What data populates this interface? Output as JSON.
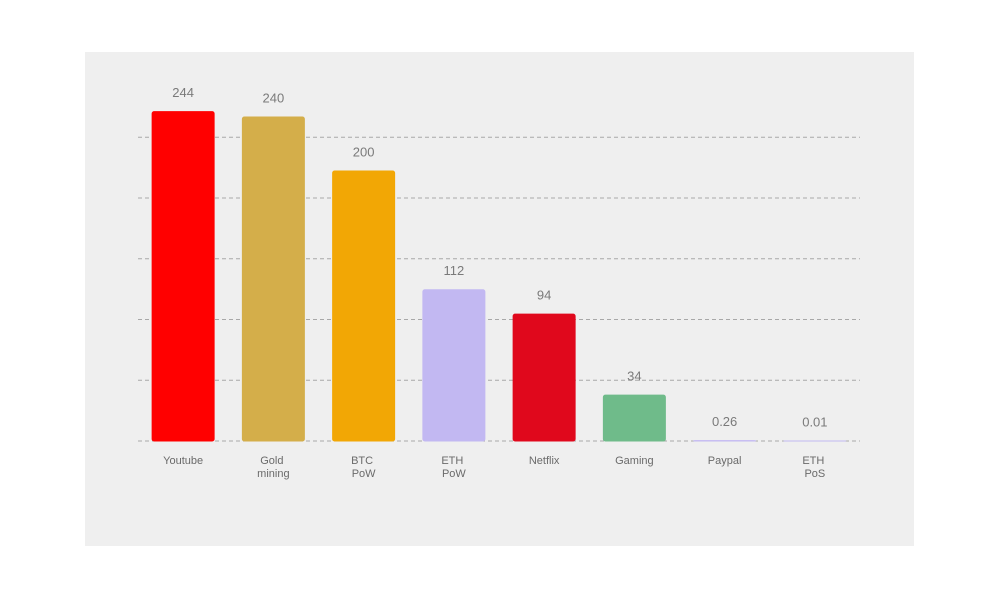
{
  "chart_data": {
    "type": "bar",
    "categories": [
      "Youtube",
      "Gold mining",
      "BTC PoW",
      "ETH PoW",
      "Netflix",
      "Gaming",
      "Paypal",
      "ETH PoS"
    ],
    "values": [
      244,
      240,
      200,
      112,
      94,
      34,
      0.26,
      0.01
    ],
    "colors": [
      "#ff0000",
      "#d4ae4a",
      "#f2a705",
      "#c2b8f2",
      "#e0081c",
      "#6fbb8a",
      "#c2b8f2",
      "#c2b8f2"
    ],
    "ylim": [
      0,
      250
    ],
    "yticks": [
      0,
      45,
      90,
      135,
      180,
      225
    ],
    "grid": true
  }
}
